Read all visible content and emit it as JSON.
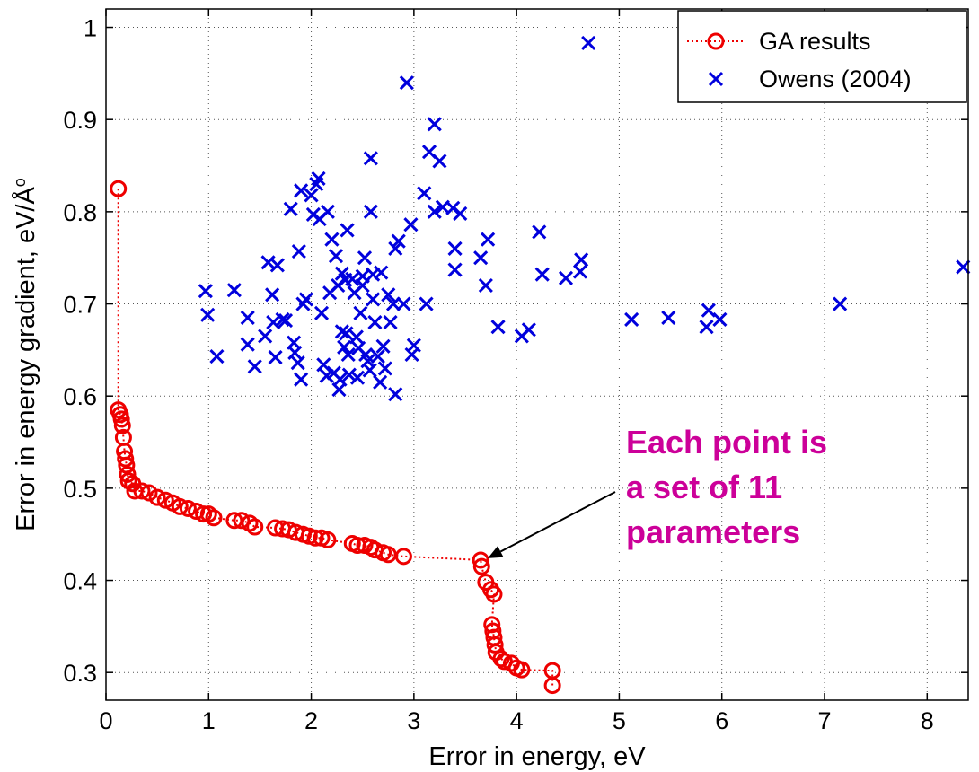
{
  "chart_data": {
    "type": "scatter",
    "title": "",
    "xlabel": "Error in energy, eV",
    "ylabel": "Error in energy gradient, eV/Å",
    "ylabel_superscript": "o",
    "xlim": [
      0,
      8.4
    ],
    "ylim": [
      0.27,
      1.02
    ],
    "xticks": [
      0,
      1,
      2,
      3,
      4,
      5,
      6,
      7,
      8
    ],
    "yticks": [
      0.3,
      0.4,
      0.5,
      0.6,
      0.7,
      0.8,
      0.9,
      1
    ],
    "ytick_labels": [
      "0.3",
      "0.4",
      "0.5",
      "0.6",
      "0.7",
      "0.8",
      "0.9",
      "1"
    ],
    "grid": true,
    "legend_position": "top-right",
    "series": [
      {
        "name": "GA results",
        "marker": "circle",
        "line": "dotted",
        "color": "#ee0000",
        "points": [
          [
            0.12,
            0.825
          ],
          [
            0.12,
            0.585
          ],
          [
            0.14,
            0.58
          ],
          [
            0.15,
            0.575
          ],
          [
            0.16,
            0.568
          ],
          [
            0.17,
            0.555
          ],
          [
            0.18,
            0.54
          ],
          [
            0.19,
            0.532
          ],
          [
            0.2,
            0.525
          ],
          [
            0.21,
            0.515
          ],
          [
            0.22,
            0.508
          ],
          [
            0.26,
            0.505
          ],
          [
            0.28,
            0.497
          ],
          [
            0.35,
            0.497
          ],
          [
            0.42,
            0.495
          ],
          [
            0.5,
            0.49
          ],
          [
            0.58,
            0.487
          ],
          [
            0.65,
            0.484
          ],
          [
            0.72,
            0.48
          ],
          [
            0.8,
            0.478
          ],
          [
            0.88,
            0.475
          ],
          [
            0.95,
            0.472
          ],
          [
            1.0,
            0.472
          ],
          [
            1.05,
            0.468
          ],
          [
            1.25,
            0.465
          ],
          [
            1.32,
            0.465
          ],
          [
            1.4,
            0.462
          ],
          [
            1.45,
            0.458
          ],
          [
            1.65,
            0.457
          ],
          [
            1.72,
            0.456
          ],
          [
            1.78,
            0.455
          ],
          [
            1.85,
            0.452
          ],
          [
            1.92,
            0.45
          ],
          [
            1.98,
            0.448
          ],
          [
            2.04,
            0.446
          ],
          [
            2.1,
            0.446
          ],
          [
            2.16,
            0.444
          ],
          [
            2.4,
            0.44
          ],
          [
            2.45,
            0.438
          ],
          [
            2.52,
            0.438
          ],
          [
            2.58,
            0.436
          ],
          [
            2.62,
            0.433
          ],
          [
            2.7,
            0.43
          ],
          [
            2.75,
            0.428
          ],
          [
            2.9,
            0.426
          ],
          [
            3.65,
            0.422
          ],
          [
            3.66,
            0.415
          ],
          [
            3.7,
            0.398
          ],
          [
            3.75,
            0.39
          ],
          [
            3.78,
            0.385
          ],
          [
            3.76,
            0.352
          ],
          [
            3.77,
            0.345
          ],
          [
            3.78,
            0.338
          ],
          [
            3.79,
            0.33
          ],
          [
            3.8,
            0.322
          ],
          [
            3.85,
            0.315
          ],
          [
            3.88,
            0.312
          ],
          [
            3.95,
            0.31
          ],
          [
            4.0,
            0.305
          ],
          [
            4.05,
            0.303
          ],
          [
            4.35,
            0.302
          ],
          [
            4.35,
            0.286
          ]
        ]
      },
      {
        "name": "Owens (2004)",
        "marker": "x",
        "color": "#0000dd",
        "points": [
          [
            0.97,
            0.714
          ],
          [
            0.99,
            0.688
          ],
          [
            1.08,
            0.643
          ],
          [
            1.25,
            0.715
          ],
          [
            1.38,
            0.685
          ],
          [
            1.38,
            0.656
          ],
          [
            1.45,
            0.632
          ],
          [
            1.55,
            0.665
          ],
          [
            1.58,
            0.745
          ],
          [
            1.62,
            0.71
          ],
          [
            1.63,
            0.68
          ],
          [
            1.65,
            0.642
          ],
          [
            1.67,
            0.742
          ],
          [
            1.72,
            0.683
          ],
          [
            1.75,
            0.682
          ],
          [
            1.8,
            0.803
          ],
          [
            1.83,
            0.658
          ],
          [
            1.84,
            0.647
          ],
          [
            1.87,
            0.636
          ],
          [
            1.88,
            0.757
          ],
          [
            1.9,
            0.618
          ],
          [
            1.9,
            0.823
          ],
          [
            1.92,
            0.7
          ],
          [
            1.95,
            0.705
          ],
          [
            2.0,
            0.818
          ],
          [
            2.02,
            0.797
          ],
          [
            2.05,
            0.83
          ],
          [
            2.07,
            0.836
          ],
          [
            2.08,
            0.792
          ],
          [
            2.1,
            0.69
          ],
          [
            2.12,
            0.634
          ],
          [
            2.15,
            0.622
          ],
          [
            2.16,
            0.8
          ],
          [
            2.18,
            0.712
          ],
          [
            2.2,
            0.77
          ],
          [
            2.22,
            0.625
          ],
          [
            2.24,
            0.752
          ],
          [
            2.26,
            0.72
          ],
          [
            2.27,
            0.607
          ],
          [
            2.28,
            0.618
          ],
          [
            2.3,
            0.733
          ],
          [
            2.3,
            0.67
          ],
          [
            2.32,
            0.653
          ],
          [
            2.33,
            0.726
          ],
          [
            2.34,
            0.668
          ],
          [
            2.35,
            0.78
          ],
          [
            2.36,
            0.645
          ],
          [
            2.37,
            0.623
          ],
          [
            2.4,
            0.727
          ],
          [
            2.42,
            0.712
          ],
          [
            2.44,
            0.664
          ],
          [
            2.45,
            0.62
          ],
          [
            2.46,
            0.652
          ],
          [
            2.48,
            0.69
          ],
          [
            2.5,
            0.73
          ],
          [
            2.5,
            0.72
          ],
          [
            2.52,
            0.75
          ],
          [
            2.53,
            0.645
          ],
          [
            2.55,
            0.638
          ],
          [
            2.57,
            0.628
          ],
          [
            2.58,
            0.858
          ],
          [
            2.58,
            0.8
          ],
          [
            2.6,
            0.732
          ],
          [
            2.6,
            0.705
          ],
          [
            2.62,
            0.68
          ],
          [
            2.65,
            0.643
          ],
          [
            2.67,
            0.615
          ],
          [
            2.68,
            0.734
          ],
          [
            2.7,
            0.654
          ],
          [
            2.72,
            0.63
          ],
          [
            2.75,
            0.71
          ],
          [
            2.77,
            0.68
          ],
          [
            2.8,
            0.7
          ],
          [
            2.82,
            0.76
          ],
          [
            2.82,
            0.602
          ],
          [
            2.85,
            0.768
          ],
          [
            2.9,
            0.7
          ],
          [
            2.93,
            0.94
          ],
          [
            2.97,
            0.786
          ],
          [
            2.98,
            0.645
          ],
          [
            3.0,
            0.655
          ],
          [
            3.1,
            0.82
          ],
          [
            3.12,
            0.7
          ],
          [
            3.15,
            0.865
          ],
          [
            3.2,
            0.895
          ],
          [
            3.2,
            0.8
          ],
          [
            3.25,
            0.855
          ],
          [
            3.28,
            0.805
          ],
          [
            3.38,
            0.804
          ],
          [
            3.4,
            0.76
          ],
          [
            3.4,
            0.737
          ],
          [
            3.45,
            0.798
          ],
          [
            3.65,
            0.75
          ],
          [
            3.7,
            0.72
          ],
          [
            3.72,
            0.77
          ],
          [
            3.82,
            0.675
          ],
          [
            4.05,
            0.665
          ],
          [
            4.12,
            0.672
          ],
          [
            4.22,
            0.778
          ],
          [
            4.25,
            0.732
          ],
          [
            4.48,
            0.728
          ],
          [
            4.62,
            0.735
          ],
          [
            4.63,
            0.748
          ],
          [
            4.7,
            0.983
          ],
          [
            5.12,
            0.683
          ],
          [
            5.48,
            0.685
          ],
          [
            5.85,
            0.675
          ],
          [
            5.87,
            0.693
          ],
          [
            5.98,
            0.683
          ],
          [
            7.15,
            0.7
          ],
          [
            8.35,
            0.74
          ]
        ]
      }
    ],
    "annotation": {
      "lines": [
        "Each point is",
        "a set of 11",
        "parameters"
      ],
      "color": "#cc0099",
      "arrow_target": [
        3.72,
        0.424
      ]
    }
  }
}
